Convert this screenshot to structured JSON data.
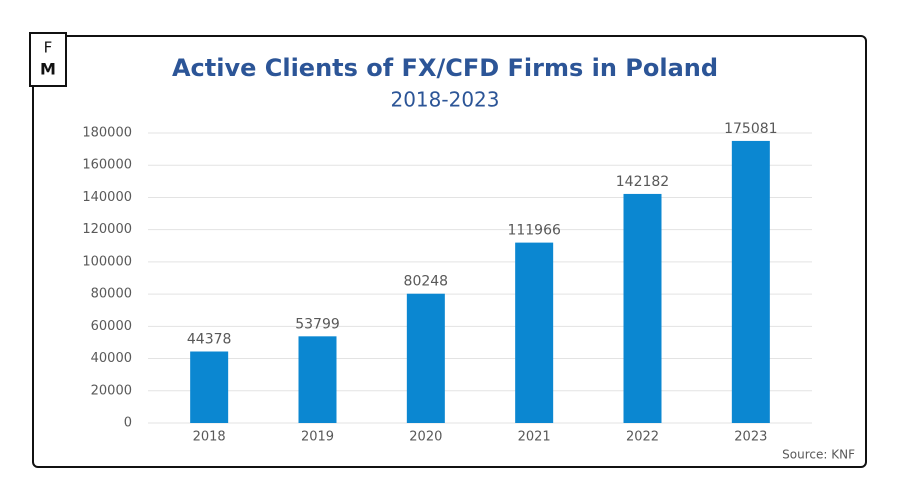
{
  "logo": {
    "top": "F",
    "bottom": "M"
  },
  "chart_data": {
    "type": "bar",
    "title": "Active Clients of FX/CFD Firms in Poland",
    "subtitle": "2018-2023",
    "source": "Source: KNF",
    "categories": [
      "2018",
      "2019",
      "2020",
      "2021",
      "2022",
      "2023"
    ],
    "values": [
      44378,
      53799,
      80248,
      111966,
      142182,
      175081
    ],
    "color": "#0b87d1",
    "ylim": [
      0,
      180000
    ],
    "yticks": [
      0,
      20000,
      40000,
      60000,
      80000,
      100000,
      120000,
      140000,
      160000,
      180000
    ],
    "grid": true
  }
}
